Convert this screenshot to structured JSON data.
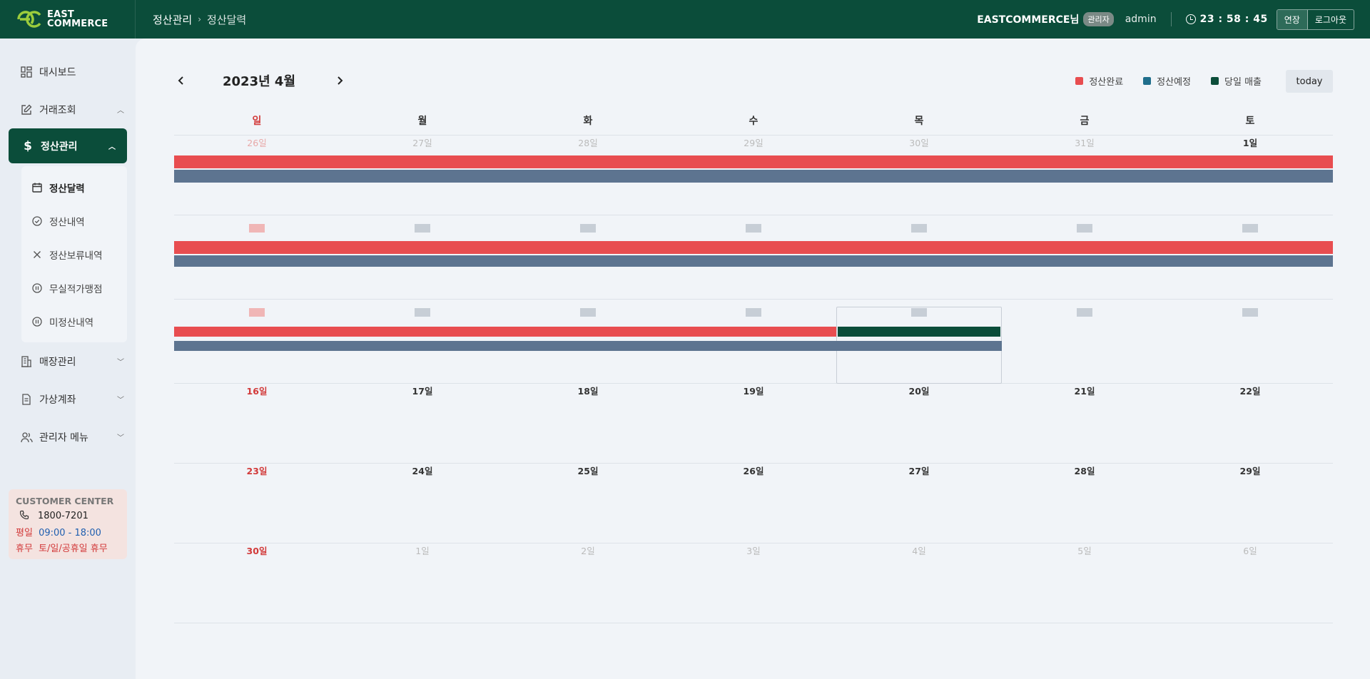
{
  "app": {
    "logo_line1": "EAST",
    "logo_line2": "COMMERCE"
  },
  "breadcrumb": {
    "section": "정산관리",
    "separator": "›",
    "page": "정산달력"
  },
  "header": {
    "user_name": "EASTCOMMERCE님",
    "role": "관리자",
    "user_id": "admin",
    "session_time": "23 : 58 : 45",
    "extend_label": "연장",
    "logout_label": "로그아웃"
  },
  "sidebar": {
    "dashboard": "대시보드",
    "transactions": "거래조회",
    "settlement": "정산관리",
    "settlement_sub": [
      "정산달력",
      "정산내역",
      "정산보류내역",
      "무실적가맹점",
      "미정산내역"
    ],
    "stores": "매장관리",
    "virtual_account": "가상계좌",
    "admin_menu": "관리자 메뉴"
  },
  "customer_center": {
    "title": "CUSTOMER CENTER",
    "phone": "1800-7201",
    "weekday_label": "평일",
    "weekday_hours": "09:00 - 18:00",
    "holiday_label": "휴무",
    "holiday_text": "토/일/공휴일 휴무"
  },
  "calendar": {
    "month_title": "2023년 4월",
    "today_label": "today",
    "legend": [
      {
        "label": "정산완료",
        "color": "#e84d50"
      },
      {
        "label": "정산예정",
        "color": "#1f6e8c"
      },
      {
        "label": "당일 매출",
        "color": "#0b4d3a"
      }
    ],
    "weekdays": [
      "일",
      "월",
      "화",
      "수",
      "목",
      "금",
      "토"
    ],
    "week1": [
      "26일",
      "27일",
      "28일",
      "29일",
      "30일",
      "31일",
      "1일"
    ],
    "week4": [
      "16일",
      "17일",
      "18일",
      "19일",
      "20일",
      "21일",
      "22일"
    ],
    "week5": [
      "23일",
      "24일",
      "25일",
      "26일",
      "27일",
      "28일",
      "29일"
    ],
    "week6": [
      "30일",
      "1일",
      "2일",
      "3일",
      "4일",
      "5일",
      "6일"
    ]
  }
}
